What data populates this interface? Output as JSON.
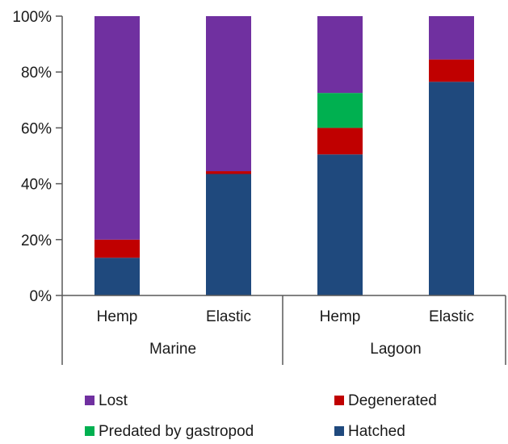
{
  "chart_data": {
    "type": "bar",
    "stacked": true,
    "percent": true,
    "categories": [
      "Hemp",
      "Elastic",
      "Hemp",
      "Elastic"
    ],
    "groups": [
      {
        "label": "Marine",
        "categories": [
          "Hemp",
          "Elastic"
        ]
      },
      {
        "label": "Lagoon",
        "categories": [
          "Hemp",
          "Elastic"
        ]
      }
    ],
    "series": [
      {
        "name": "Hatched",
        "color": "#1f497d",
        "values": [
          13.5,
          43.5,
          50.5,
          76.5
        ]
      },
      {
        "name": "Degenerated",
        "color": "#c00000",
        "values": [
          6.5,
          1,
          9.5,
          8
        ]
      },
      {
        "name": "Predated by gastropod",
        "color": "#00b050",
        "values": [
          0,
          0,
          12.5,
          0
        ]
      },
      {
        "name": "Lost",
        "color": "#7030a0",
        "values": [
          80,
          55.5,
          27.5,
          15.5
        ]
      }
    ],
    "yticks": [
      "0%",
      "20%",
      "40%",
      "60%",
      "80%",
      "100%"
    ],
    "ylim": [
      0,
      100
    ],
    "grid": false,
    "legend_position": "bottom",
    "legend_order": [
      "Lost",
      "Degenerated",
      "Predated by gastropod",
      "Hatched"
    ]
  }
}
